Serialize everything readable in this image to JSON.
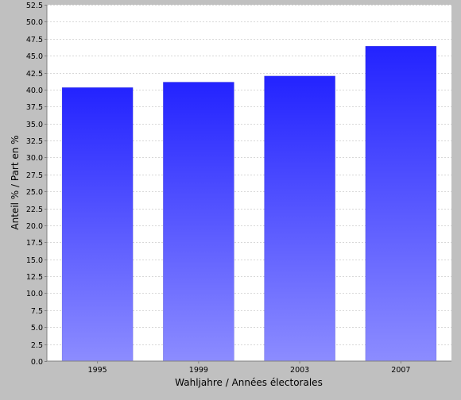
{
  "chart_data": {
    "type": "bar",
    "categories": [
      "1995",
      "1999",
      "2003",
      "2007"
    ],
    "values": [
      40.3,
      41.1,
      42.0,
      46.4
    ],
    "xlabel": "Wahljahre / Années électorales",
    "ylabel": "Anteil % / Part en %",
    "ylim": [
      0,
      52.5
    ],
    "ytick_step": 2.5,
    "yticks": [
      "0.0",
      "2.5",
      "5.0",
      "7.5",
      "10.0",
      "12.5",
      "15.0",
      "17.5",
      "20.0",
      "22.5",
      "25.0",
      "27.5",
      "30.0",
      "32.5",
      "35.0",
      "37.5",
      "40.0",
      "42.5",
      "45.0",
      "47.5",
      "50.0",
      "52.5"
    ],
    "grid": true,
    "legend": "none",
    "colors": {
      "background": "#c0c0c0",
      "plot_background": "#ffffff",
      "bar_top": "#2323ff",
      "bar_bottom": "#8c8cff",
      "grid": "#d8d8d8",
      "axis": "#808080",
      "text": "#000000"
    }
  }
}
